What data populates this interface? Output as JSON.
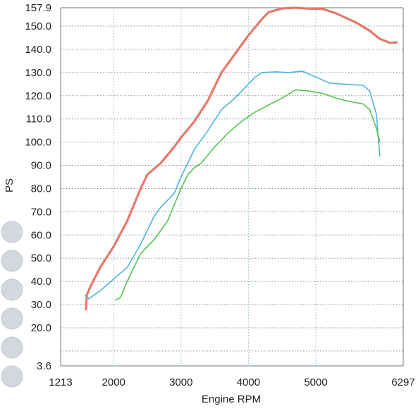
{
  "chart_data": {
    "type": "line",
    "title": "",
    "xlabel": "Engine RPM",
    "ylabel": "PS",
    "xlim": [
      1213,
      6297
    ],
    "ylim": [
      3.6,
      157.9
    ],
    "x_ticks": [
      {
        "value": 1213,
        "label": "1213"
      },
      {
        "value": 2000,
        "label": "2000"
      },
      {
        "value": 3000,
        "label": "3000"
      },
      {
        "value": 4000,
        "label": "4000"
      },
      {
        "value": 5000,
        "label": "5000"
      },
      {
        "value": 6297,
        "label": "6297"
      }
    ],
    "y_ticks": [
      {
        "value": 157.9,
        "label": "157.9"
      },
      {
        "value": 150.0,
        "label": "150.0"
      },
      {
        "value": 140.0,
        "label": "140.0"
      },
      {
        "value": 130.0,
        "label": "130.0"
      },
      {
        "value": 120.0,
        "label": "120.0"
      },
      {
        "value": 110.0,
        "label": "110.0"
      },
      {
        "value": 100.0,
        "label": "100.0"
      },
      {
        "value": 90.0,
        "label": "90.0"
      },
      {
        "value": 80.0,
        "label": "80.0"
      },
      {
        "value": 70.0,
        "label": "70.0"
      },
      {
        "value": 60.0,
        "label": "60.0"
      },
      {
        "value": 50.0,
        "label": "50.0"
      },
      {
        "value": 40.0,
        "label": "40.0"
      },
      {
        "value": 30.0,
        "label": "30.0"
      },
      {
        "value": 20.0,
        "label": "20.0"
      },
      {
        "value": 10.0,
        "label": ""
      },
      {
        "value": 3.6,
        "label": "3.6"
      }
    ],
    "grid": true,
    "legend": "none",
    "series": [
      {
        "color": "#e8786a",
        "points": [
          [
            1590,
            28
          ],
          [
            1600,
            34
          ],
          [
            1660,
            38
          ],
          [
            1800,
            46
          ],
          [
            2000,
            55
          ],
          [
            2200,
            66
          ],
          [
            2400,
            80
          ],
          [
            2500,
            86
          ],
          [
            2700,
            91
          ],
          [
            2900,
            98
          ],
          [
            3000,
            102
          ],
          [
            3200,
            109
          ],
          [
            3400,
            118
          ],
          [
            3500,
            124
          ],
          [
            3600,
            130
          ],
          [
            3800,
            138
          ],
          [
            4000,
            146
          ],
          [
            4200,
            153
          ],
          [
            4300,
            156
          ],
          [
            4500,
            157.6
          ],
          [
            4700,
            157.9
          ],
          [
            4900,
            157.5
          ],
          [
            5100,
            157.4
          ],
          [
            5300,
            155.5
          ],
          [
            5600,
            151.5
          ],
          [
            5800,
            148
          ],
          [
            5950,
            144.5
          ],
          [
            6100,
            142.8
          ],
          [
            6200,
            143
          ]
        ]
      },
      {
        "color": "#4fb3e0",
        "points": [
          [
            1580,
            34
          ],
          [
            1630,
            32.5
          ],
          [
            1800,
            36
          ],
          [
            2000,
            41
          ],
          [
            2200,
            46
          ],
          [
            2400,
            56
          ],
          [
            2600,
            68
          ],
          [
            2700,
            72
          ],
          [
            2900,
            78
          ],
          [
            3000,
            85
          ],
          [
            3200,
            97
          ],
          [
            3400,
            105
          ],
          [
            3600,
            114
          ],
          [
            3800,
            119
          ],
          [
            4000,
            125
          ],
          [
            4100,
            128
          ],
          [
            4200,
            130
          ],
          [
            4400,
            130.3
          ],
          [
            4600,
            130
          ],
          [
            4800,
            130.6
          ],
          [
            5000,
            128
          ],
          [
            5200,
            125.5
          ],
          [
            5400,
            125
          ],
          [
            5700,
            124.5
          ],
          [
            5800,
            122
          ],
          [
            5900,
            112
          ],
          [
            5950,
            94
          ]
        ]
      },
      {
        "color": "#52c44a",
        "points": [
          [
            2030,
            32
          ],
          [
            2100,
            33
          ],
          [
            2200,
            40
          ],
          [
            2400,
            52
          ],
          [
            2600,
            58
          ],
          [
            2800,
            66
          ],
          [
            3000,
            80
          ],
          [
            3100,
            86
          ],
          [
            3200,
            89
          ],
          [
            3300,
            91
          ],
          [
            3500,
            98
          ],
          [
            3700,
            104
          ],
          [
            3900,
            109
          ],
          [
            4100,
            113
          ],
          [
            4300,
            116
          ],
          [
            4500,
            119
          ],
          [
            4700,
            122.5
          ],
          [
            4900,
            122
          ],
          [
            5100,
            121
          ],
          [
            5300,
            119
          ],
          [
            5500,
            117.5
          ],
          [
            5700,
            116.5
          ],
          [
            5800,
            114
          ],
          [
            5900,
            106
          ],
          [
            5950,
            100
          ]
        ]
      }
    ]
  },
  "binder_holes": 6
}
